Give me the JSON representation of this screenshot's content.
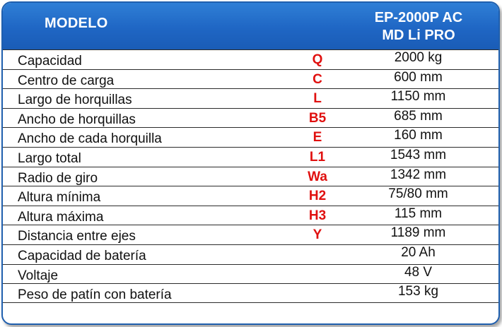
{
  "header": {
    "model_label": "MODELO",
    "model_value_line1": "EP-2000P AC",
    "model_value_line2": "MD Li PRO"
  },
  "colors": {
    "header_blue": "#1f66c4",
    "border_blue": "#1f5fae",
    "symbol_red": "#e0100f"
  },
  "specs": [
    {
      "name": "Capacidad",
      "symbol": "Q",
      "value": "2000 kg"
    },
    {
      "name": "Centro de carga",
      "symbol": "C",
      "value": "600 mm"
    },
    {
      "name": "Largo de horquillas",
      "symbol": "L",
      "value": "1150 mm"
    },
    {
      "name": "Ancho de horquillas",
      "symbol": "B5",
      "value": "685 mm"
    },
    {
      "name": "Ancho de cada horquilla",
      "symbol": "E",
      "value": "160 mm"
    },
    {
      "name": "Largo total",
      "symbol": "L1",
      "value": "1543 mm"
    },
    {
      "name": "Radio de giro",
      "symbol": "Wa",
      "value": "1342 mm"
    },
    {
      "name": "Altura mínima",
      "symbol": "H2",
      "value": "75/80 mm"
    },
    {
      "name": "Altura máxima",
      "symbol": "H3",
      "value": "115 mm"
    },
    {
      "name": "Distancia entre ejes",
      "symbol": "Y",
      "value": "1189 mm"
    },
    {
      "name": "Capacidad de batería",
      "symbol": "",
      "value": "20 Ah"
    },
    {
      "name": "Voltaje",
      "symbol": "",
      "value": "48 V"
    },
    {
      "name": "Peso de patín con batería",
      "symbol": "",
      "value": "153 kg"
    }
  ]
}
